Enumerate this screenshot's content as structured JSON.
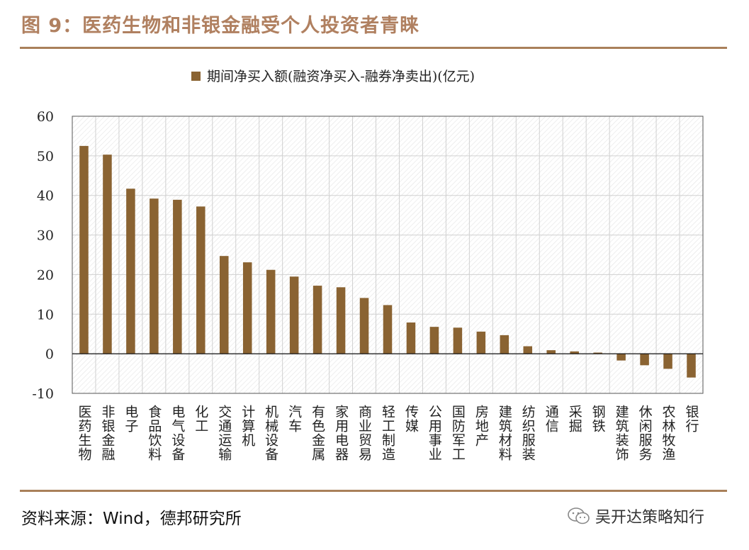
{
  "figure_title": "图 9：医药生物和非银金融受个人投资者青睐",
  "source_text": "资料来源：Wind，德邦研究所",
  "watermark_text": "吴开达策略知行",
  "colors": {
    "bar": "#8a6332",
    "rule": "#a9805a",
    "title": "#b08060",
    "grid": "#d0d0d0"
  },
  "chart_data": {
    "type": "bar",
    "legend": "期间净买入额(融资净买入-融券净卖出)(亿元)",
    "legend_position": "top-center",
    "grid": true,
    "ylim": [
      -10,
      60
    ],
    "yticks": [
      60,
      50,
      40,
      30,
      20,
      10,
      0,
      -10
    ],
    "categories": [
      "医药生物",
      "非银金融",
      "电子",
      "食品饮料",
      "电气设备",
      "化工",
      "交通运输",
      "计算机",
      "机械设备",
      "汽车",
      "有色金属",
      "家用电器",
      "商业贸易",
      "轻工制造",
      "传媒",
      "公用事业",
      "国防军工",
      "房地产",
      "建筑材料",
      "纺织服装",
      "通信",
      "采掘",
      "钢铁",
      "建筑装饰",
      "休闲服务",
      "农林牧渔",
      "银行"
    ],
    "series": [
      {
        "values": [
          52.5,
          50.3,
          41.7,
          39.2,
          38.9,
          37.2,
          24.7,
          23.1,
          21.2,
          19.5,
          17.2,
          16.8,
          14.1,
          12.3,
          7.9,
          6.8,
          6.6,
          5.6,
          4.7,
          1.9,
          0.9,
          0.6,
          0.3,
          -1.7,
          -2.9,
          -3.8,
          -6.0
        ]
      }
    ]
  }
}
